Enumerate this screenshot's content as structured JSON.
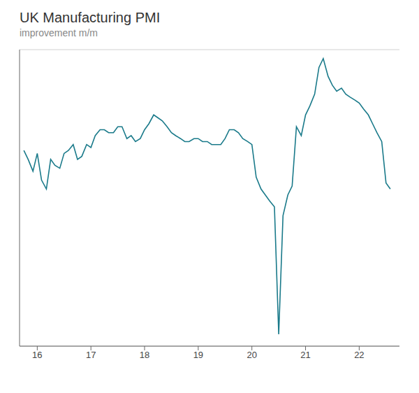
{
  "chart_data": {
    "type": "line",
    "title": "UK Manufacturing PMI",
    "subtitle": "improvement m/m",
    "color": "#1a7a8a",
    "x": [
      2015.75,
      2015.83,
      2015.92,
      2016.0,
      2016.08,
      2016.17,
      2016.25,
      2016.33,
      2016.42,
      2016.5,
      2016.58,
      2016.67,
      2016.75,
      2016.83,
      2016.92,
      2017.0,
      2017.08,
      2017.17,
      2017.25,
      2017.33,
      2017.42,
      2017.5,
      2017.58,
      2017.67,
      2017.75,
      2017.83,
      2017.92,
      2018.0,
      2018.08,
      2018.17,
      2018.25,
      2018.33,
      2018.42,
      2018.5,
      2018.58,
      2018.67,
      2018.75,
      2018.83,
      2018.92,
      2019.0,
      2019.08,
      2019.17,
      2019.25,
      2019.33,
      2019.42,
      2019.5,
      2019.58,
      2019.67,
      2019.75,
      2019.83,
      2019.92,
      2020.0,
      2020.08,
      2020.17,
      2020.25,
      2020.33,
      2020.42,
      2020.5,
      2020.58,
      2020.67,
      2020.75,
      2020.83,
      2020.92,
      2021.0,
      2021.08,
      2021.17,
      2021.25,
      2021.33,
      2021.42,
      2021.5,
      2021.58,
      2021.67,
      2021.75,
      2021.83,
      2021.92,
      2022.0,
      2022.08,
      2022.17,
      2022.25,
      2022.33,
      2022.42,
      2022.5,
      2022.58
    ],
    "values": [
      1.0,
      -0.5,
      -2.5,
      0.5,
      -4.0,
      -5.5,
      -0.5,
      -1.5,
      -2.0,
      0.5,
      1.0,
      2.0,
      -0.5,
      0.0,
      2.0,
      1.5,
      3.5,
      4.5,
      4.5,
      4.0,
      4.0,
      5.0,
      5.0,
      3.0,
      3.5,
      2.5,
      3.0,
      4.5,
      5.5,
      7.0,
      6.5,
      6.0,
      5.0,
      4.0,
      3.5,
      3.0,
      2.5,
      2.5,
      3.0,
      3.0,
      2.5,
      2.5,
      2.0,
      2.0,
      2.0,
      3.0,
      4.5,
      4.5,
      4.0,
      3.0,
      2.5,
      2.0,
      -3.5,
      -5.5,
      -6.5,
      -7.5,
      -8.5,
      -30.0,
      -10.0,
      -6.5,
      -5.0,
      5.0,
      3.5,
      7.0,
      8.5,
      10.5,
      15.0,
      16.5,
      13.5,
      12.0,
      11.0,
      11.5,
      10.5,
      10.0,
      9.5,
      9.0,
      8.0,
      7.0,
      5.5,
      4.0,
      2.5,
      -4.5,
      -5.5
    ],
    "xlim": [
      2015.67,
      2022.75
    ],
    "xticks": [
      {
        "value": 2016,
        "label": "16"
      },
      {
        "value": 2017,
        "label": "17"
      },
      {
        "value": 2018,
        "label": "18"
      },
      {
        "value": 2019,
        "label": "19"
      },
      {
        "value": 2020,
        "label": "20"
      },
      {
        "value": 2021,
        "label": "21"
      },
      {
        "value": 2022,
        "label": "22"
      }
    ],
    "ylim": [
      -32,
      18
    ],
    "yticks": [
      -30,
      -20,
      -10,
      0,
      10
    ],
    "grid": true,
    "tick_labels": "x"
  }
}
